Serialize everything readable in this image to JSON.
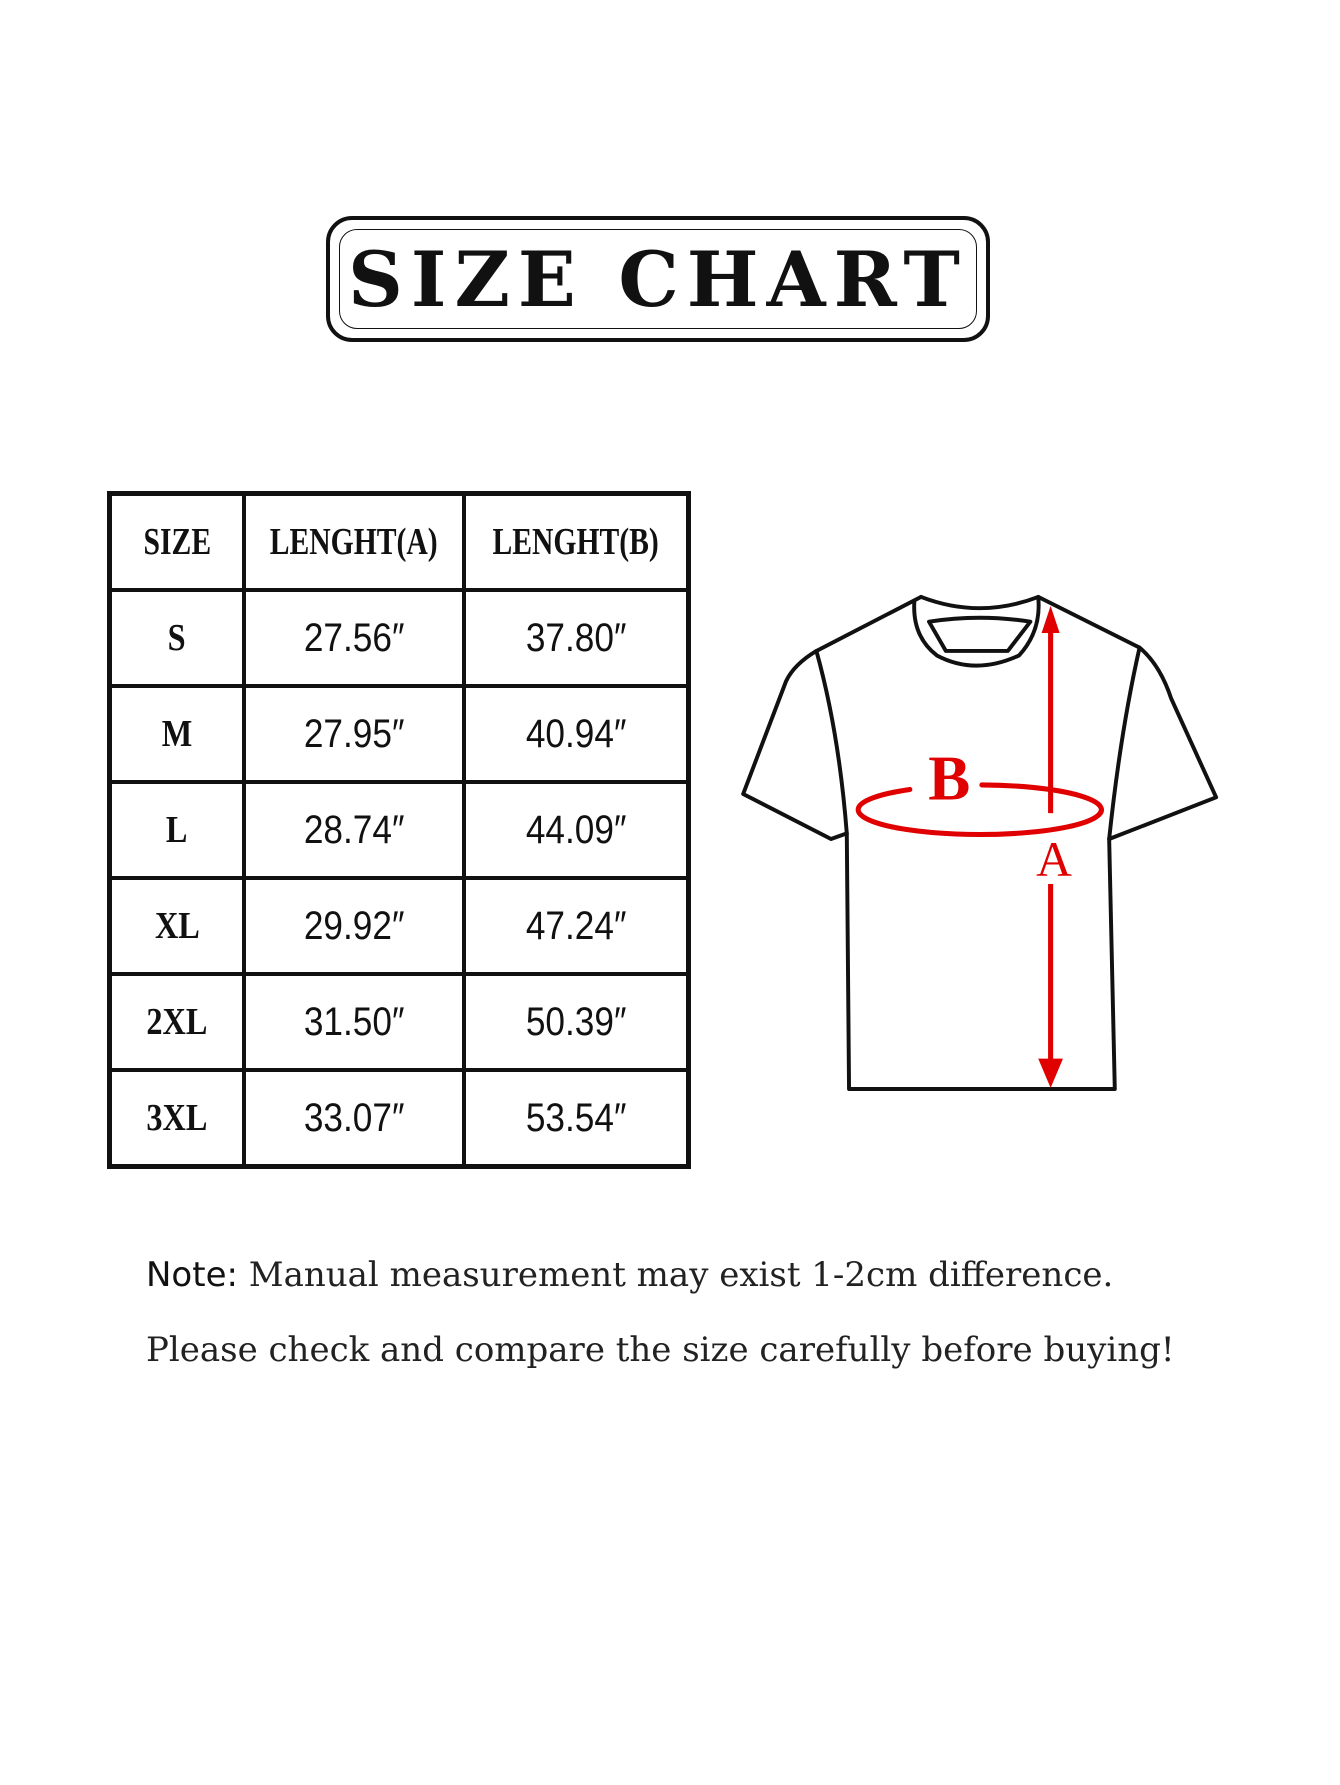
{
  "title": "SIZE CHART",
  "table": {
    "headers": [
      "SIZE",
      "LENGHT(A)",
      "LENGHT(B)"
    ],
    "rows": [
      [
        "S",
        "27.56″",
        "37.80″"
      ],
      [
        "M",
        "27.95″",
        "40.94″"
      ],
      [
        "L",
        "28.74″",
        "44.09″"
      ],
      [
        "XL",
        "29.92″",
        "47.24″"
      ],
      [
        "2XL",
        "31.50″",
        "50.39″"
      ],
      [
        "3XL",
        "33.07″",
        "53.54″"
      ]
    ]
  },
  "diagram": {
    "label_a": "A",
    "label_b": "B",
    "measure_color": "#e00000",
    "outline_color": "#111111"
  },
  "note": {
    "label": "Note:",
    "line1": "Manual measurement may exist 1-2cm difference.",
    "line2": "Please check and compare the size carefully before buying!"
  }
}
